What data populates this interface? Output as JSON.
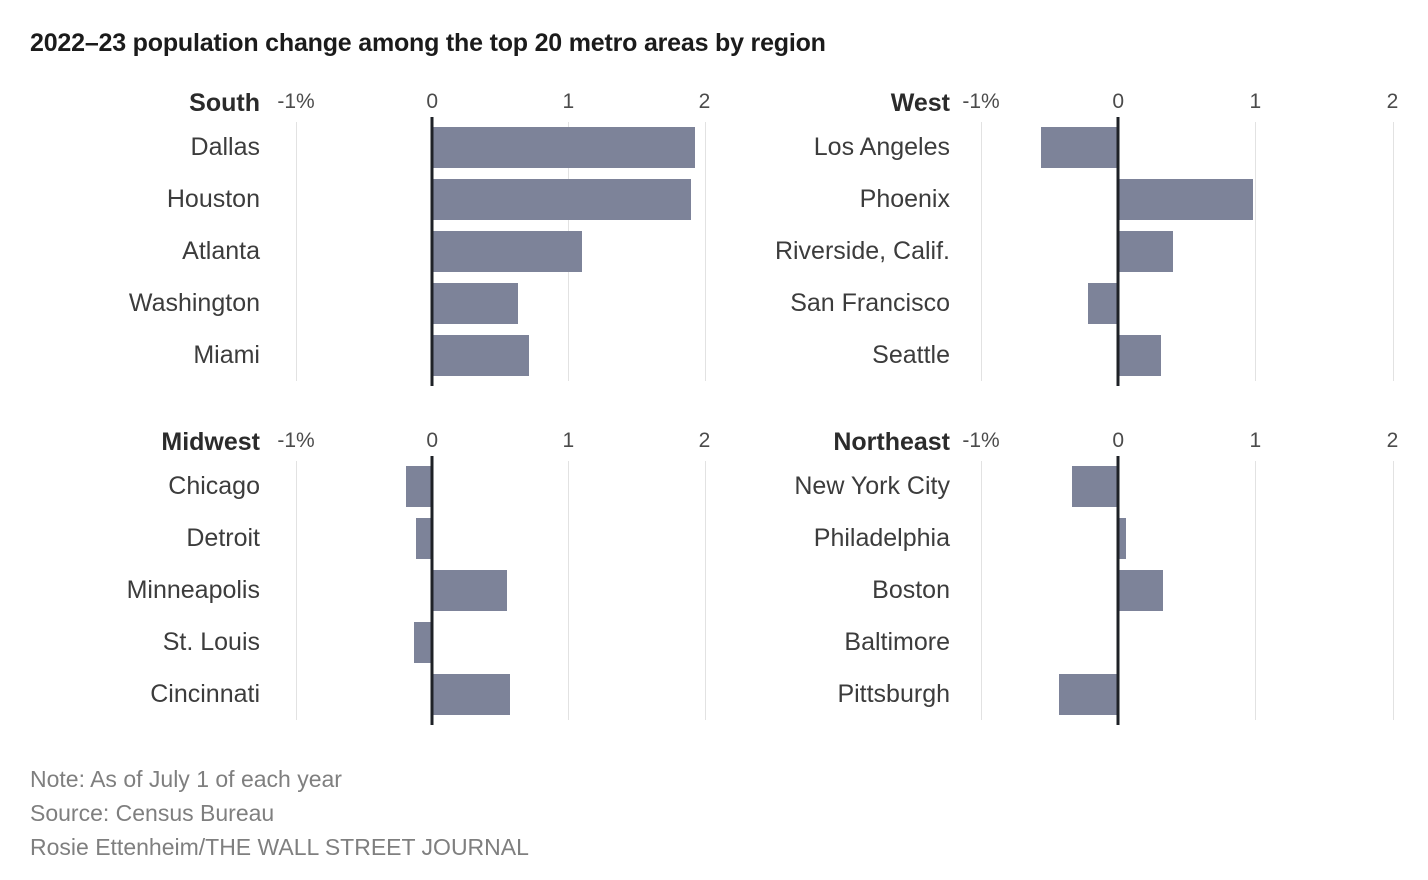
{
  "title": "2022–23 population change among the top 20 metro areas by region",
  "footer": {
    "note": "Note: As of July 1 of each year",
    "source": "Source: Census Bureau",
    "credit": "Rosie Ettenheim/THE WALL STREET JOURNAL"
  },
  "colors": {
    "bar": "#7d8399",
    "zero_axis": "#1e2126",
    "gridline": "#e2e2e2",
    "title_text": "#1b1b1b",
    "city_text": "#3c3c3c",
    "tick_text": "#4b4b4b",
    "footer_text": "#7f7f7f",
    "background": "#ffffff"
  },
  "chart_data": {
    "type": "bar",
    "orientation": "horizontal",
    "title": "2022–23 population change among the top 20 metro areas by region",
    "value_unit": "percent",
    "xlabel": "",
    "ylabel": "",
    "xlim": [
      -1,
      2.26
    ],
    "grid": true,
    "axis_ticks": {
      "labels": [
        "-1%",
        "0",
        "1",
        "2"
      ],
      "values": [
        -1,
        0,
        1,
        2
      ]
    },
    "groups": [
      {
        "region": "South",
        "cities": [
          {
            "name": "Dallas",
            "value": 1.93
          },
          {
            "name": "Houston",
            "value": 1.9
          },
          {
            "name": "Atlanta",
            "value": 1.1
          },
          {
            "name": "Washington",
            "value": 0.63
          },
          {
            "name": "Miami",
            "value": 0.71
          }
        ]
      },
      {
        "region": "West",
        "cities": [
          {
            "name": "Los Angeles",
            "value": -0.56
          },
          {
            "name": "Phoenix",
            "value": 0.98
          },
          {
            "name": "Riverside, Calif.",
            "value": 0.4
          },
          {
            "name": "San Francisco",
            "value": -0.22
          },
          {
            "name": "Seattle",
            "value": 0.31
          }
        ]
      },
      {
        "region": "Midwest",
        "cities": [
          {
            "name": "Chicago",
            "value": -0.19
          },
          {
            "name": "Detroit",
            "value": -0.12
          },
          {
            "name": "Minneapolis",
            "value": 0.55
          },
          {
            "name": "St. Louis",
            "value": -0.13
          },
          {
            "name": "Cincinnati",
            "value": 0.57
          }
        ]
      },
      {
        "region": "Northeast",
        "cities": [
          {
            "name": "New York City",
            "value": -0.34
          },
          {
            "name": "Philadelphia",
            "value": 0.06
          },
          {
            "name": "Boston",
            "value": 0.33
          },
          {
            "name": "Baltimore",
            "value": 0.0
          },
          {
            "name": "Pittsburgh",
            "value": -0.43
          }
        ]
      }
    ]
  }
}
